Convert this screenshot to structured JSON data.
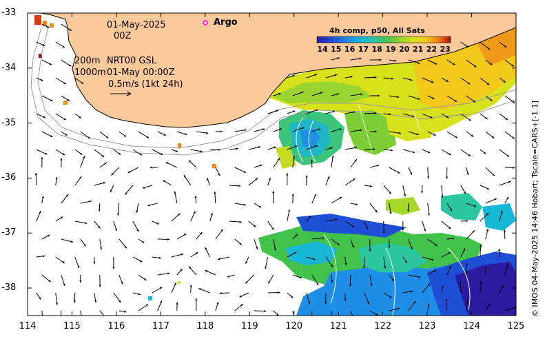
{
  "header": {
    "date_line": "01-May-2025",
    "time_line": "00Z",
    "contour_line1_depth": "200m",
    "contour_line1_text": "NRT00 GSL",
    "contour_line2_depth": "1000m",
    "contour_line2_text": "01-May 00:00Z",
    "scale_text": "0.5m/s (1kt 24h)"
  },
  "legend": {
    "argo_label": "Argo",
    "argo_color": "#ff00ff"
  },
  "colorbar": {
    "title": "4h comp, p50, All Sats",
    "ticks": [
      "14",
      "15",
      "16",
      "17",
      "18",
      "19",
      "20",
      "21",
      "22",
      "23"
    ],
    "colors": [
      "#2b1b9e",
      "#1f4fd6",
      "#1f8ee6",
      "#18b7d6",
      "#2cc6a0",
      "#42c24a",
      "#8fd232",
      "#d6e21e",
      "#f2c81a",
      "#ef8a16",
      "#d83a10",
      "#8e1508"
    ]
  },
  "axes": {
    "x_ticks": [
      "114",
      "115",
      "116",
      "117",
      "118",
      "119",
      "120",
      "121",
      "122",
      "123",
      "124",
      "125"
    ],
    "y_ticks": [
      "-33",
      "-34",
      "-35",
      "-36",
      "-37",
      "-38"
    ]
  },
  "colors": {
    "land": "#fbc99a",
    "ocean": "#ffffff",
    "arrow": "#000000",
    "contour": "#9a9a9a"
  },
  "credit": "© IMOS 04-May-2025 14:46 Hobart; Tscale=CARS+[-1 1]"
}
